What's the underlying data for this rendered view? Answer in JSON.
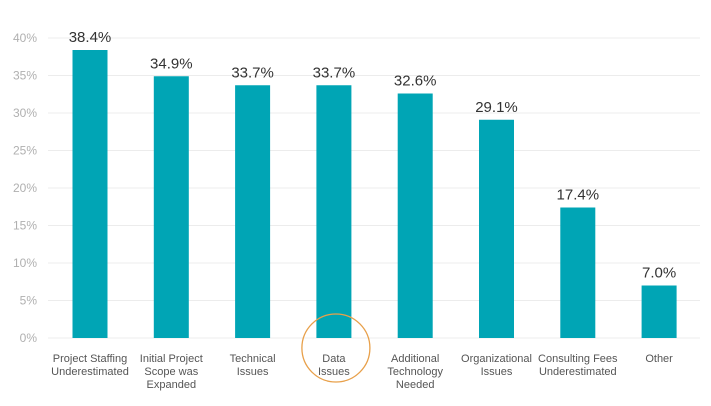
{
  "chart_data": {
    "type": "bar",
    "title": "",
    "xlabel": "",
    "ylabel": "",
    "ylim": [
      0,
      40
    ],
    "yticks": [
      0,
      5,
      10,
      15,
      20,
      25,
      30,
      35,
      40
    ],
    "ytick_labels": [
      "0%",
      "5%",
      "10%",
      "15%",
      "20%",
      "25%",
      "30%",
      "35%",
      "40%"
    ],
    "grid": true,
    "categories": [
      [
        "Project Staffing",
        "Underestimated"
      ],
      [
        "Initial Project",
        "Scope was",
        "Expanded"
      ],
      [
        "Technical",
        "Issues"
      ],
      [
        "Data",
        "Issues"
      ],
      [
        "Additional",
        "Technology",
        "Needed"
      ],
      [
        "Organizational",
        "Issues"
      ],
      [
        "Consulting Fees",
        "Underestimated"
      ],
      [
        "Other"
      ]
    ],
    "values": [
      38.4,
      34.9,
      33.7,
      33.7,
      32.6,
      29.1,
      17.4,
      7.0
    ],
    "data_labels": [
      "38.4%",
      "34.9%",
      "33.7%",
      "33.7%",
      "32.6%",
      "29.1%",
      "17.4%",
      "7.0%"
    ],
    "highlighted_category_index": 3,
    "annotation": "circle around Data Issues label",
    "colors": {
      "bar": "#00a5b5",
      "highlight_circle": "#e8a04a",
      "grid": "#ececec"
    }
  }
}
